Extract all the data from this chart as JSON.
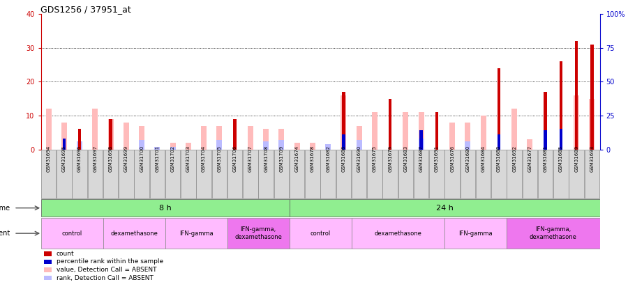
{
  "title": "GDS1256 / 37951_at",
  "samples": [
    "GSM31694",
    "GSM31695",
    "GSM31696",
    "GSM31697",
    "GSM31698",
    "GSM31699",
    "GSM31700",
    "GSM31701",
    "GSM31702",
    "GSM31703",
    "GSM31704",
    "GSM31705",
    "GSM31706",
    "GSM31707",
    "GSM31708",
    "GSM31709",
    "GSM31674",
    "GSM31678",
    "GSM31682",
    "GSM31686",
    "GSM31690",
    "GSM31675",
    "GSM31679",
    "GSM31683",
    "GSM31687",
    "GSM31691",
    "GSM31676",
    "GSM31680",
    "GSM31684",
    "GSM31688",
    "GSM31692",
    "GSM31677",
    "GSM31681",
    "GSM31685",
    "GSM31689",
    "GSM31693"
  ],
  "count": [
    0,
    0,
    6,
    0,
    9,
    0,
    0,
    0,
    0,
    0,
    0,
    0,
    9,
    0,
    0,
    0,
    0,
    0,
    0,
    17,
    0,
    0,
    15,
    0,
    0,
    11,
    0,
    0,
    0,
    24,
    0,
    0,
    17,
    26,
    32,
    31
  ],
  "percentile": [
    0,
    8,
    0,
    0,
    0,
    0,
    0,
    0,
    0,
    0,
    0,
    0,
    0,
    0,
    0,
    0,
    0,
    0,
    0,
    11,
    0,
    0,
    0,
    0,
    14,
    0,
    0,
    0,
    0,
    11,
    0,
    0,
    14,
    15,
    0,
    0
  ],
  "value_absent": [
    12,
    8,
    0,
    12,
    9,
    8,
    7,
    0,
    2,
    2,
    7,
    7,
    0,
    7,
    6,
    6,
    2,
    2,
    0,
    16,
    7,
    11,
    0,
    11,
    11,
    0,
    8,
    8,
    10,
    0,
    12,
    3,
    0,
    0,
    16,
    15
  ],
  "rank_absent": [
    0,
    0,
    6,
    0,
    0,
    0,
    7,
    2,
    2,
    0,
    0,
    7,
    0,
    0,
    6,
    7,
    0,
    0,
    4,
    0,
    7,
    0,
    0,
    0,
    8,
    0,
    0,
    6,
    0,
    0,
    0,
    0,
    0,
    0,
    0,
    0
  ],
  "agent_groups": [
    {
      "label": "control",
      "start": 0,
      "end": 4,
      "color": "#ffbbff"
    },
    {
      "label": "dexamethasone",
      "start": 4,
      "end": 8,
      "color": "#ffbbff"
    },
    {
      "label": "IFN-gamma",
      "start": 8,
      "end": 12,
      "color": "#ffbbff"
    },
    {
      "label": "IFN-gamma,\ndexamethasone",
      "start": 12,
      "end": 16,
      "color": "#ee77ee"
    },
    {
      "label": "control",
      "start": 16,
      "end": 20,
      "color": "#ffbbff"
    },
    {
      "label": "dexamethasone",
      "start": 20,
      "end": 26,
      "color": "#ffbbff"
    },
    {
      "label": "IFN-gamma",
      "start": 26,
      "end": 30,
      "color": "#ffbbff"
    },
    {
      "label": "IFN-gamma,\ndexamethasone",
      "start": 30,
      "end": 36,
      "color": "#ee77ee"
    }
  ],
  "ylim_left": [
    0,
    40
  ],
  "ylim_right": [
    0,
    100
  ],
  "yticks_left": [
    0,
    10,
    20,
    30,
    40
  ],
  "yticks_right": [
    0,
    25,
    50,
    75,
    100
  ],
  "ytick_right_labels": [
    "0",
    "25",
    "50",
    "75",
    "100%"
  ],
  "color_count": "#cc0000",
  "color_percentile": "#0000cc",
  "color_value_absent": "#ffbbbb",
  "color_rank_absent": "#bbbbff",
  "bar_width": 0.2,
  "time_color": "#90ee90",
  "label_color_left": "#cc0000",
  "label_color_right": "#0000cc"
}
